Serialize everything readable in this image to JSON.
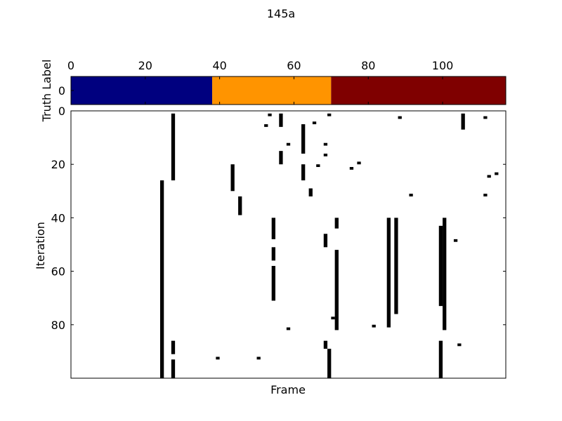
{
  "title": "145a",
  "chart_data": [
    {
      "type": "heatmap",
      "name": "truth-label-strip",
      "ylabel": "Truth Label",
      "x_ticks": [
        0,
        20,
        40,
        60,
        80,
        100
      ],
      "x_tick_labels": [
        "0",
        "20",
        "40",
        "60",
        "80",
        "100"
      ],
      "x_tick_position": "top",
      "y_ticks": [
        0
      ],
      "y_tick_labels": [
        "0"
      ],
      "xlim": [
        0,
        117
      ],
      "segments": [
        {
          "start": 0,
          "end": 38,
          "color": "#00007f"
        },
        {
          "start": 38,
          "end": 70,
          "color": "#ff9400"
        },
        {
          "start": 70,
          "end": 117,
          "color": "#7f0000"
        }
      ]
    },
    {
      "type": "heatmap",
      "name": "iteration-frame-map",
      "xlabel": "Frame",
      "ylabel": "Iteration",
      "y_ticks": [
        0,
        20,
        40,
        60,
        80
      ],
      "y_tick_labels": [
        "0",
        "20",
        "40",
        "60",
        "80"
      ],
      "xlim": [
        0,
        117
      ],
      "ylim": [
        0,
        100
      ],
      "cell_color": "#000000",
      "background": "#ffffff",
      "columns": [
        {
          "frame": 24,
          "runs": [
            [
              26,
              99
            ]
          ]
        },
        {
          "frame": 27,
          "runs": [
            [
              1,
              25
            ],
            [
              86,
              90
            ],
            [
              93,
              99
            ]
          ]
        },
        {
          "frame": 43,
          "runs": [
            [
              20,
              29
            ]
          ]
        },
        {
          "frame": 45,
          "runs": [
            [
              32,
              38
            ]
          ]
        },
        {
          "frame": 54,
          "runs": [
            [
              40,
              47
            ],
            [
              51,
              55
            ],
            [
              58,
              70
            ]
          ]
        },
        {
          "frame": 56,
          "runs": [
            [
              1,
              5
            ],
            [
              15,
              19
            ]
          ]
        },
        {
          "frame": 62,
          "runs": [
            [
              5,
              15
            ],
            [
              20,
              25
            ]
          ]
        },
        {
          "frame": 64,
          "runs": [
            [
              29,
              31
            ]
          ]
        },
        {
          "frame": 68,
          "runs": [
            [
              46,
              50
            ],
            [
              86,
              88
            ]
          ]
        },
        {
          "frame": 69,
          "runs": [
            [
              89,
              99
            ]
          ]
        },
        {
          "frame": 71,
          "runs": [
            [
              40,
              43
            ],
            [
              52,
              81
            ]
          ]
        },
        {
          "frame": 85,
          "runs": [
            [
              40,
              80
            ]
          ]
        },
        {
          "frame": 87,
          "runs": [
            [
              40,
              75
            ]
          ]
        },
        {
          "frame": 99,
          "runs": [
            [
              43,
              72
            ],
            [
              86,
              99
            ]
          ]
        },
        {
          "frame": 100,
          "runs": [
            [
              40,
              81
            ]
          ]
        },
        {
          "frame": 105,
          "runs": [
            [
              1,
              6
            ]
          ]
        }
      ],
      "cells": [
        [
          39,
          92
        ],
        [
          50,
          92
        ],
        [
          52,
          5
        ],
        [
          53,
          1
        ],
        [
          58,
          12
        ],
        [
          58,
          81
        ],
        [
          65,
          4
        ],
        [
          66,
          20
        ],
        [
          68,
          12
        ],
        [
          68,
          16
        ],
        [
          69,
          1
        ],
        [
          70,
          77
        ],
        [
          75,
          21
        ],
        [
          77,
          19
        ],
        [
          81,
          80
        ],
        [
          88,
          2
        ],
        [
          91,
          31
        ],
        [
          103,
          48
        ],
        [
          104,
          87
        ],
        [
          111,
          2
        ],
        [
          112,
          24
        ],
        [
          114,
          23
        ],
        [
          111,
          31
        ]
      ]
    }
  ]
}
